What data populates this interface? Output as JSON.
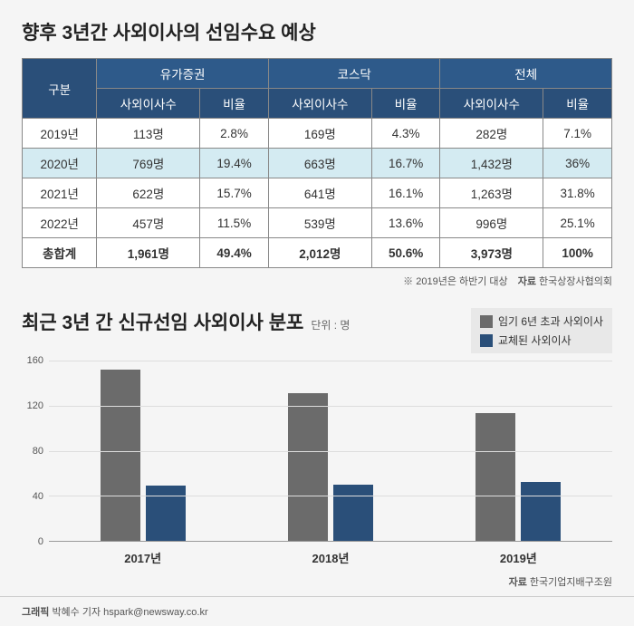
{
  "table": {
    "title": "향후 3년간 사외이사의 선임수요 예상",
    "header_row1": {
      "group_label": "구분",
      "col_groups": [
        "유가증권",
        "코스닥",
        "전체"
      ]
    },
    "header_row2": {
      "sub_cols": [
        "사외이사수",
        "비율",
        "사외이사수",
        "비율",
        "사외이사수",
        "비율"
      ]
    },
    "rows": [
      {
        "year": "2019년",
        "cells": [
          "113명",
          "2.8%",
          "169명",
          "4.3%",
          "282명",
          "7.1%"
        ],
        "highlight": false
      },
      {
        "year": "2020년",
        "cells": [
          "769명",
          "19.4%",
          "663명",
          "16.7%",
          "1,432명",
          "36%"
        ],
        "highlight": true
      },
      {
        "year": "2021년",
        "cells": [
          "622명",
          "15.7%",
          "641명",
          "16.1%",
          "1,263명",
          "31.8%"
        ],
        "highlight": false
      },
      {
        "year": "2022년",
        "cells": [
          "457명",
          "11.5%",
          "539명",
          "13.6%",
          "996명",
          "25.1%"
        ],
        "highlight": false
      }
    ],
    "total_row": {
      "label": "총합계",
      "cells": [
        "1,961명",
        "49.4%",
        "2,012명",
        "50.6%",
        "3,973명",
        "100%"
      ]
    },
    "footnote_note": "※ 2019년은 하반기 대상",
    "footnote_source_label": "자료",
    "footnote_source": "한국상장사협의회",
    "header_bg": "#2e5a8a",
    "header_bg_dark": "#2a4f79",
    "highlight_bg": "#d4ebf2"
  },
  "chart": {
    "title": "최근 3년 간 신규선임 사외이사 분포",
    "unit_label": "단위 : 명",
    "legend": [
      {
        "label": "임기 6년 초과 사외이사",
        "color": "#6b6b6b"
      },
      {
        "label": "교체된 사외이사",
        "color": "#2a4f79"
      }
    ],
    "type": "bar",
    "ylim": [
      0,
      160
    ],
    "ytick_step": 40,
    "yticks": [
      0,
      40,
      80,
      120,
      160
    ],
    "categories": [
      "2017년",
      "2018년",
      "2019년"
    ],
    "series": [
      {
        "name": "임기 6년 초과 사외이사",
        "color": "#6b6b6b",
        "values": [
          152,
          131,
          113
        ]
      },
      {
        "name": "교체된 사외이사",
        "color": "#2a4f79",
        "values": [
          49,
          50,
          52
        ]
      }
    ],
    "grid_color": "#dddddd",
    "axis_color": "#999999",
    "background_color": "#f5f5f5",
    "footnote_source_label": "자료",
    "footnote_source": "한국기업지배구조원"
  },
  "credit": {
    "label": "그래픽",
    "author": "박혜수 기자 hspark@newsway.co.kr"
  }
}
